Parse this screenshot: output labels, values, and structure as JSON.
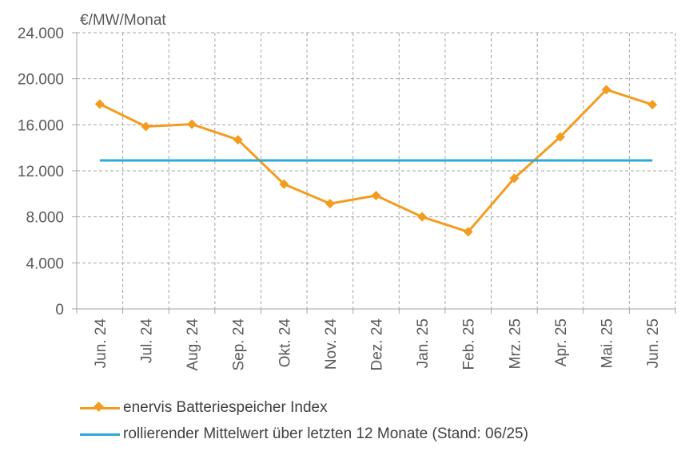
{
  "chart_data": {
    "type": "line",
    "ylabel": "€/MW/Monat",
    "categories": [
      "Jun. 24",
      "Jul. 24",
      "Aug. 24",
      "Sep. 24",
      "Okt. 24",
      "Nov. 24",
      "Dez. 24",
      "Jan. 25",
      "Feb. 25",
      "Mrz. 25",
      "Apr. 25",
      "Mai. 25",
      "Jun. 25"
    ],
    "y_ticks": [
      "0",
      "4.000",
      "8.000",
      "12.000",
      "16.000",
      "20.000",
      "24.000"
    ],
    "ylim": [
      0,
      24000
    ],
    "grid": true,
    "legend_position": "bottom-left",
    "series": [
      {
        "name": "enervis Batteriespeicher Index",
        "color": "#F39C1F",
        "marker": "diamond",
        "values": [
          17800,
          15850,
          16050,
          14700,
          10850,
          9150,
          9850,
          8000,
          6700,
          11350,
          14950,
          19050,
          17750
        ]
      },
      {
        "name": "rollierender Mittelwert über letzten 12 Monate (Stand: 06/25)",
        "color": "#2BAAD8",
        "marker": "none",
        "values": [
          12900,
          12900,
          12900,
          12900,
          12900,
          12900,
          12900,
          12900,
          12900,
          12900,
          12900,
          12900,
          12900
        ]
      }
    ]
  }
}
